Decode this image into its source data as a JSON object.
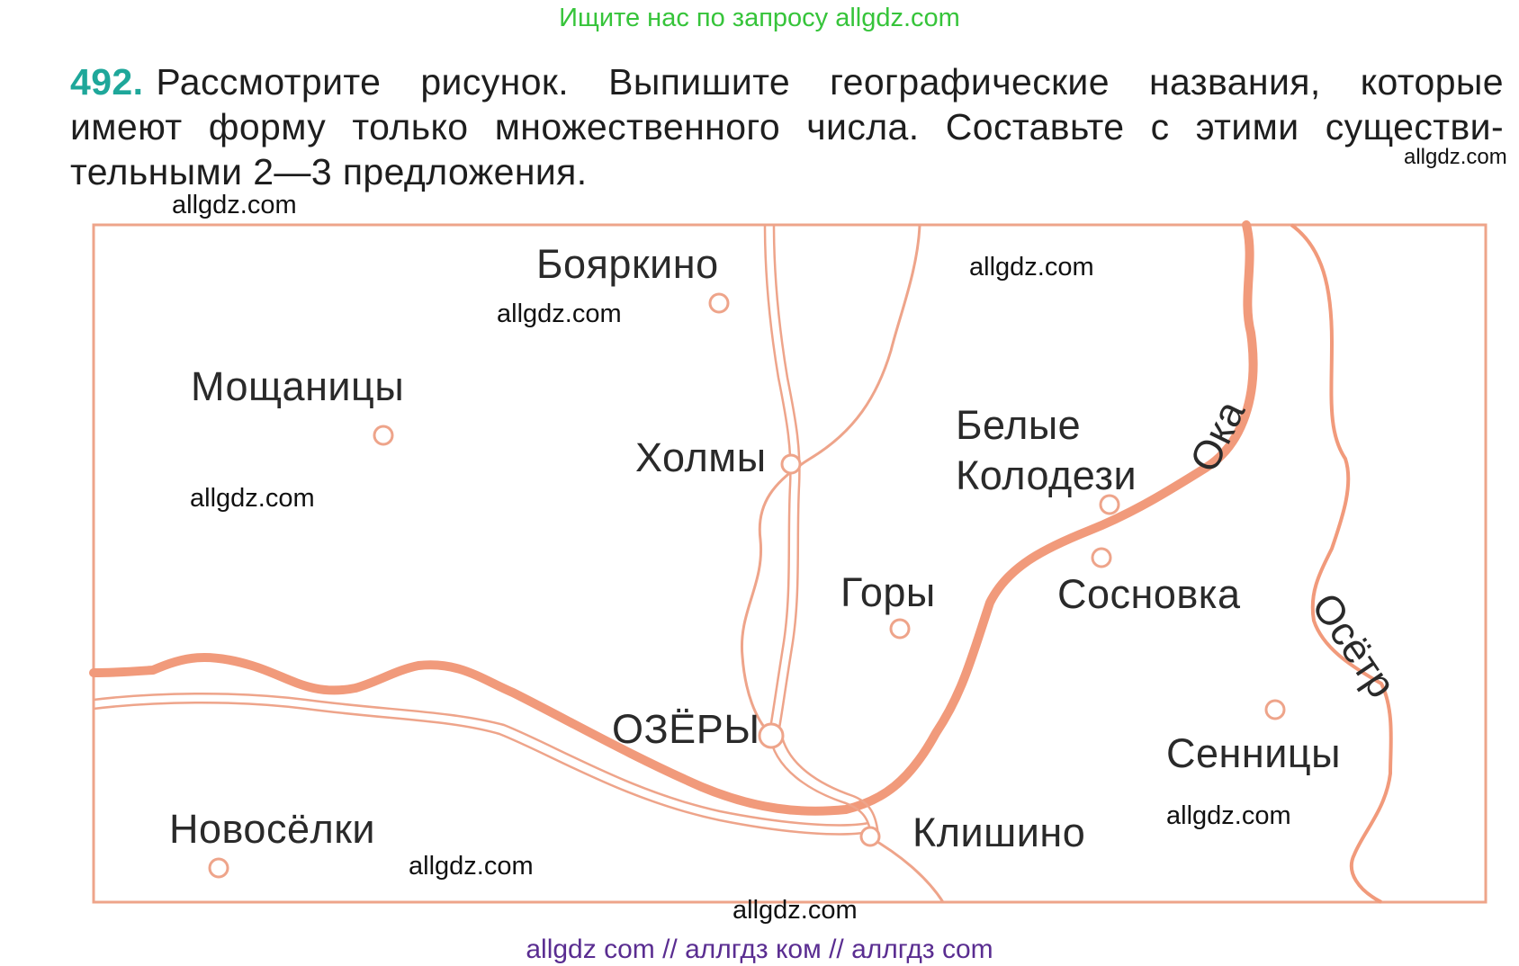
{
  "banner": "Ищите нас по запросу allgdz.com",
  "task": {
    "number": "492.",
    "line1": "Рассмотрите рисунок. Выпишите географические названия, которые",
    "line2": "имеют форму только множественного числа. Составьте с этими существи-",
    "line3": "тельными 2—3 предложения."
  },
  "watermark": "allgdz.com",
  "map": {
    "places": {
      "boyarkino": "Бояркино",
      "moshchanitsy": "Мощаницы",
      "kholmy": "Холмы",
      "belye_kolodezi_line1": "Белые",
      "belye_kolodezi_line2": "Колодези",
      "gory": "Горы",
      "sosnovka": "Сосновка",
      "ozery": "ОЗЁРЫ",
      "novoselki": "Новосёлки",
      "klishino": "Клишино",
      "sennitsy": "Сенницы"
    },
    "rivers": {
      "oka": "Ока",
      "osetr": "Осётр"
    },
    "colors": {
      "frame": "#eea48a",
      "river": "#f19a7b",
      "road": "#eea48a"
    }
  },
  "footer": "allgdz com  //  аллгдз ком  //  аллгдз com"
}
